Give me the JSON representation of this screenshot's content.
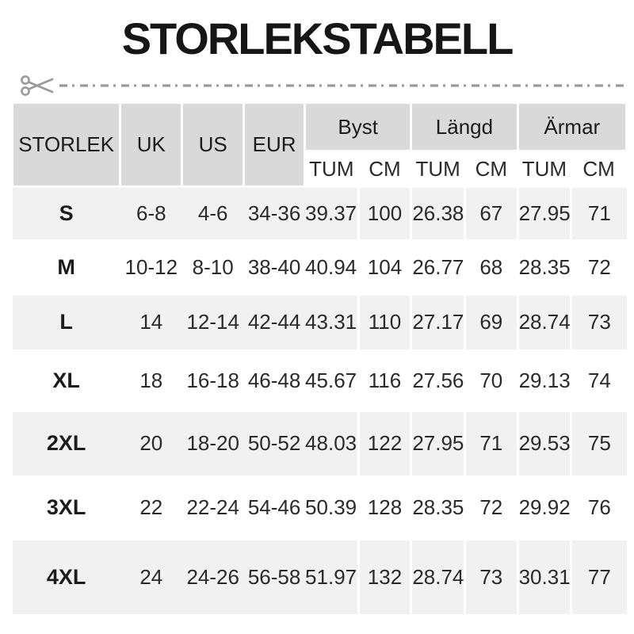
{
  "title": "STORLEKSTABELL",
  "icons": {
    "scissors": "scissors-icon"
  },
  "colors": {
    "header_bg": "#d9d9d9",
    "alt_row_bg": "#f1f1f1",
    "cut_line": "#9a9a9a",
    "text": "#1c1c1c"
  },
  "header": {
    "storlek": "STORLEK",
    "uk": "UK",
    "us": "US",
    "eur": "EUR",
    "byst": "Byst",
    "langd": "Längd",
    "armar": "Ärmar",
    "tum": "TUM",
    "cm": "CM"
  },
  "chart_data": {
    "type": "table",
    "title": "STORLEKSTABELL",
    "columns": [
      "STORLEK",
      "UK",
      "US",
      "EUR",
      "Byst TUM",
      "Byst CM",
      "Längd TUM",
      "Längd CM",
      "Ärmar TUM",
      "Ärmar CM"
    ],
    "rows": [
      [
        "S",
        "6-8",
        "4-6",
        "34-36",
        "39.37",
        "100",
        "26.38",
        "67",
        "27.95",
        "71"
      ],
      [
        "M",
        "10-12",
        "8-10",
        "38-40",
        "40.94",
        "104",
        "26.77",
        "68",
        "28.35",
        "72"
      ],
      [
        "L",
        "14",
        "12-14",
        "42-44",
        "43.31",
        "110",
        "27.17",
        "69",
        "28.74",
        "73"
      ],
      [
        "XL",
        "18",
        "16-18",
        "46-48",
        "45.67",
        "116",
        "27.56",
        "70",
        "29.13",
        "74"
      ],
      [
        "2XL",
        "20",
        "18-20",
        "50-52",
        "48.03",
        "122",
        "27.95",
        "71",
        "29.53",
        "75"
      ],
      [
        "3XL",
        "22",
        "22-24",
        "54-46",
        "50.39",
        "128",
        "28.35",
        "72",
        "29.92",
        "76"
      ],
      [
        "4XL",
        "24",
        "24-26",
        "56-58",
        "51.97",
        "132",
        "28.74",
        "73",
        "30.31",
        "77"
      ]
    ]
  }
}
